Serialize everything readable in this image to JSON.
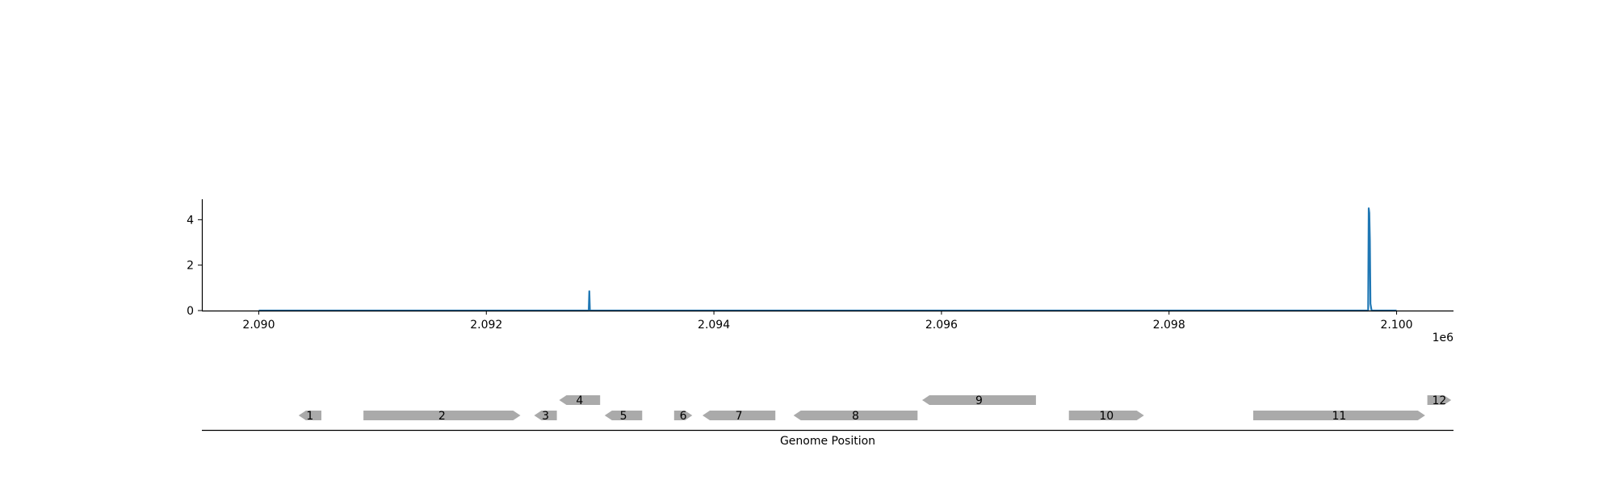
{
  "chart_data": [
    {
      "type": "line",
      "x_multiplier_label": "1e6",
      "xlim": [
        2.0895,
        2.1005
      ],
      "ylim": [
        0,
        4.9
      ],
      "x_ticks": [
        {
          "value": 2.09,
          "label": "2.090"
        },
        {
          "value": 2.092,
          "label": "2.092"
        },
        {
          "value": 2.094,
          "label": "2.094"
        },
        {
          "value": 2.096,
          "label": "2.096"
        },
        {
          "value": 2.098,
          "label": "2.098"
        },
        {
          "value": 2.1,
          "label": "2.100"
        }
      ],
      "y_ticks": [
        {
          "value": 0,
          "label": "0"
        },
        {
          "value": 2,
          "label": "2"
        },
        {
          "value": 4,
          "label": "4"
        }
      ],
      "series": [
        {
          "color": "#1f77b4",
          "x": [
            2.09,
            2.0929,
            2.092905,
            2.09291,
            2.09975,
            2.099755,
            2.09976,
            2.099762,
            2.099765,
            2.09977,
            2.09978,
            2.1
          ],
          "y": [
            0,
            0,
            0.85,
            0,
            0,
            4.5,
            4.3,
            3.8,
            3.1,
            0.3,
            0,
            0
          ]
        }
      ],
      "grid": false,
      "legend": "none"
    },
    {
      "type": "gene_map",
      "xlabel": "Genome Position",
      "xlim": [
        2.0895,
        2.1005
      ],
      "gene_color": "#aaaaaa",
      "genes": [
        {
          "label": "1",
          "start": 2.09035,
          "end": 2.09055,
          "strand": "-",
          "row": 0
        },
        {
          "label": "2",
          "start": 2.09092,
          "end": 2.0923,
          "strand": "+",
          "row": 0
        },
        {
          "label": "3",
          "start": 2.09242,
          "end": 2.09262,
          "strand": "-",
          "row": 0
        },
        {
          "label": "4",
          "start": 2.09264,
          "end": 2.093,
          "strand": "-",
          "row": 1
        },
        {
          "label": "5",
          "start": 2.09304,
          "end": 2.09337,
          "strand": "-",
          "row": 0
        },
        {
          "label": "6",
          "start": 2.09365,
          "end": 2.09381,
          "strand": "+",
          "row": 0
        },
        {
          "label": "7",
          "start": 2.0939,
          "end": 2.09454,
          "strand": "-",
          "row": 0
        },
        {
          "label": "8",
          "start": 2.0947,
          "end": 2.09579,
          "strand": "-",
          "row": 0
        },
        {
          "label": "9",
          "start": 2.09583,
          "end": 2.09683,
          "strand": "-",
          "row": 1
        },
        {
          "label": "10",
          "start": 2.09712,
          "end": 2.09778,
          "strand": "+",
          "row": 0
        },
        {
          "label": "11",
          "start": 2.09874,
          "end": 2.10025,
          "strand": "+",
          "row": 0
        },
        {
          "label": "12",
          "start": 2.10027,
          "end": 2.10048,
          "strand": "+",
          "row": 1
        }
      ]
    }
  ]
}
